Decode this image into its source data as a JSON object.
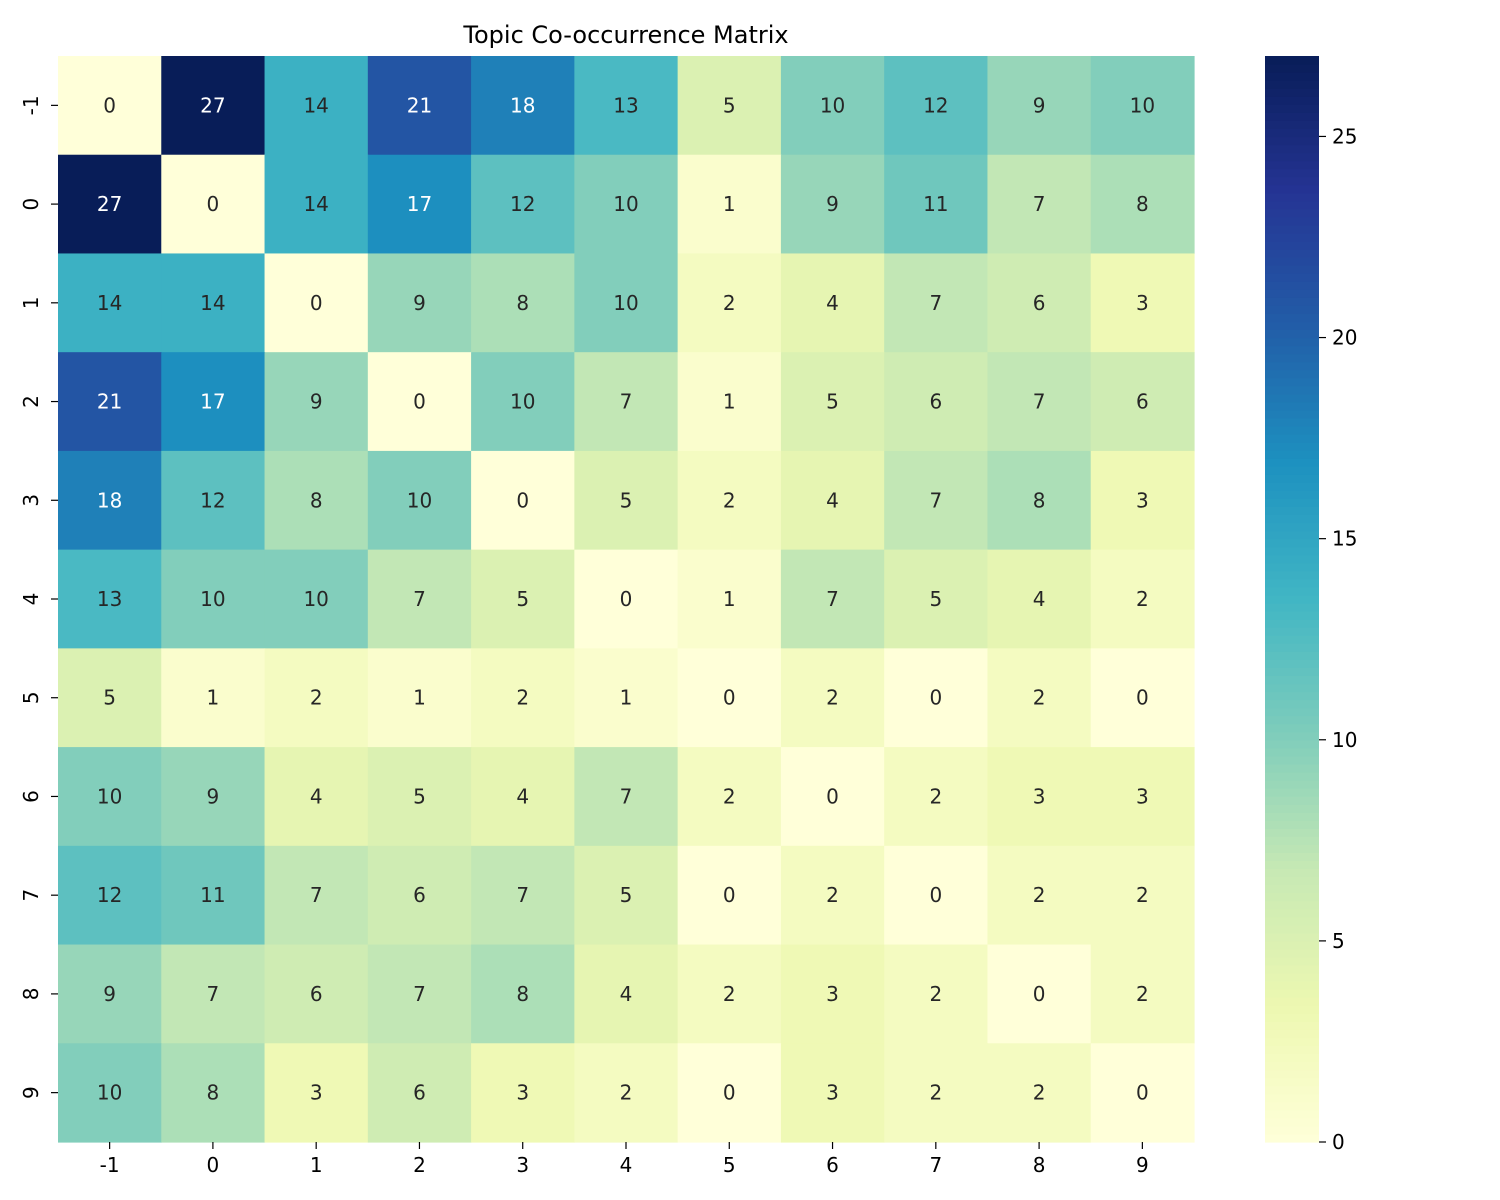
{
  "chart_data": {
    "type": "heatmap",
    "title": "Topic Co-occurrence Matrix",
    "xlabel": "",
    "ylabel": "",
    "x_categories": [
      "-1",
      "0",
      "1",
      "2",
      "3",
      "4",
      "5",
      "6",
      "7",
      "8",
      "9"
    ],
    "y_categories": [
      "-1",
      "0",
      "1",
      "2",
      "3",
      "4",
      "5",
      "6",
      "7",
      "8",
      "9"
    ],
    "values": [
      [
        0,
        27,
        14,
        21,
        18,
        13,
        5,
        10,
        12,
        9,
        10
      ],
      [
        27,
        0,
        14,
        17,
        12,
        10,
        1,
        9,
        11,
        7,
        8
      ],
      [
        14,
        14,
        0,
        9,
        8,
        10,
        2,
        4,
        7,
        6,
        3
      ],
      [
        21,
        17,
        9,
        0,
        10,
        7,
        1,
        5,
        6,
        7,
        6
      ],
      [
        18,
        12,
        8,
        10,
        0,
        5,
        2,
        4,
        7,
        8,
        3
      ],
      [
        13,
        10,
        10,
        7,
        5,
        0,
        1,
        7,
        5,
        4,
        2
      ],
      [
        5,
        1,
        2,
        1,
        2,
        1,
        0,
        2,
        0,
        2,
        0
      ],
      [
        10,
        9,
        4,
        5,
        4,
        7,
        2,
        0,
        2,
        3,
        3
      ],
      [
        12,
        11,
        7,
        6,
        7,
        5,
        0,
        2,
        0,
        2,
        2
      ],
      [
        9,
        7,
        6,
        7,
        8,
        4,
        2,
        3,
        2,
        0,
        2
      ],
      [
        10,
        8,
        3,
        6,
        3,
        2,
        0,
        3,
        2,
        2,
        0
      ]
    ],
    "colormap": "YlGnBu",
    "colormap_stops": [
      "#ffffd9",
      "#edf8b1",
      "#c7e9b4",
      "#7fcdbb",
      "#41b6c4",
      "#1d91c0",
      "#225ea8",
      "#253494",
      "#081d58"
    ],
    "vmin": 0,
    "vmax": 27,
    "colorbar_ticks": [
      0,
      5,
      10,
      15,
      20,
      25
    ],
    "annotations": true,
    "grid": false
  }
}
